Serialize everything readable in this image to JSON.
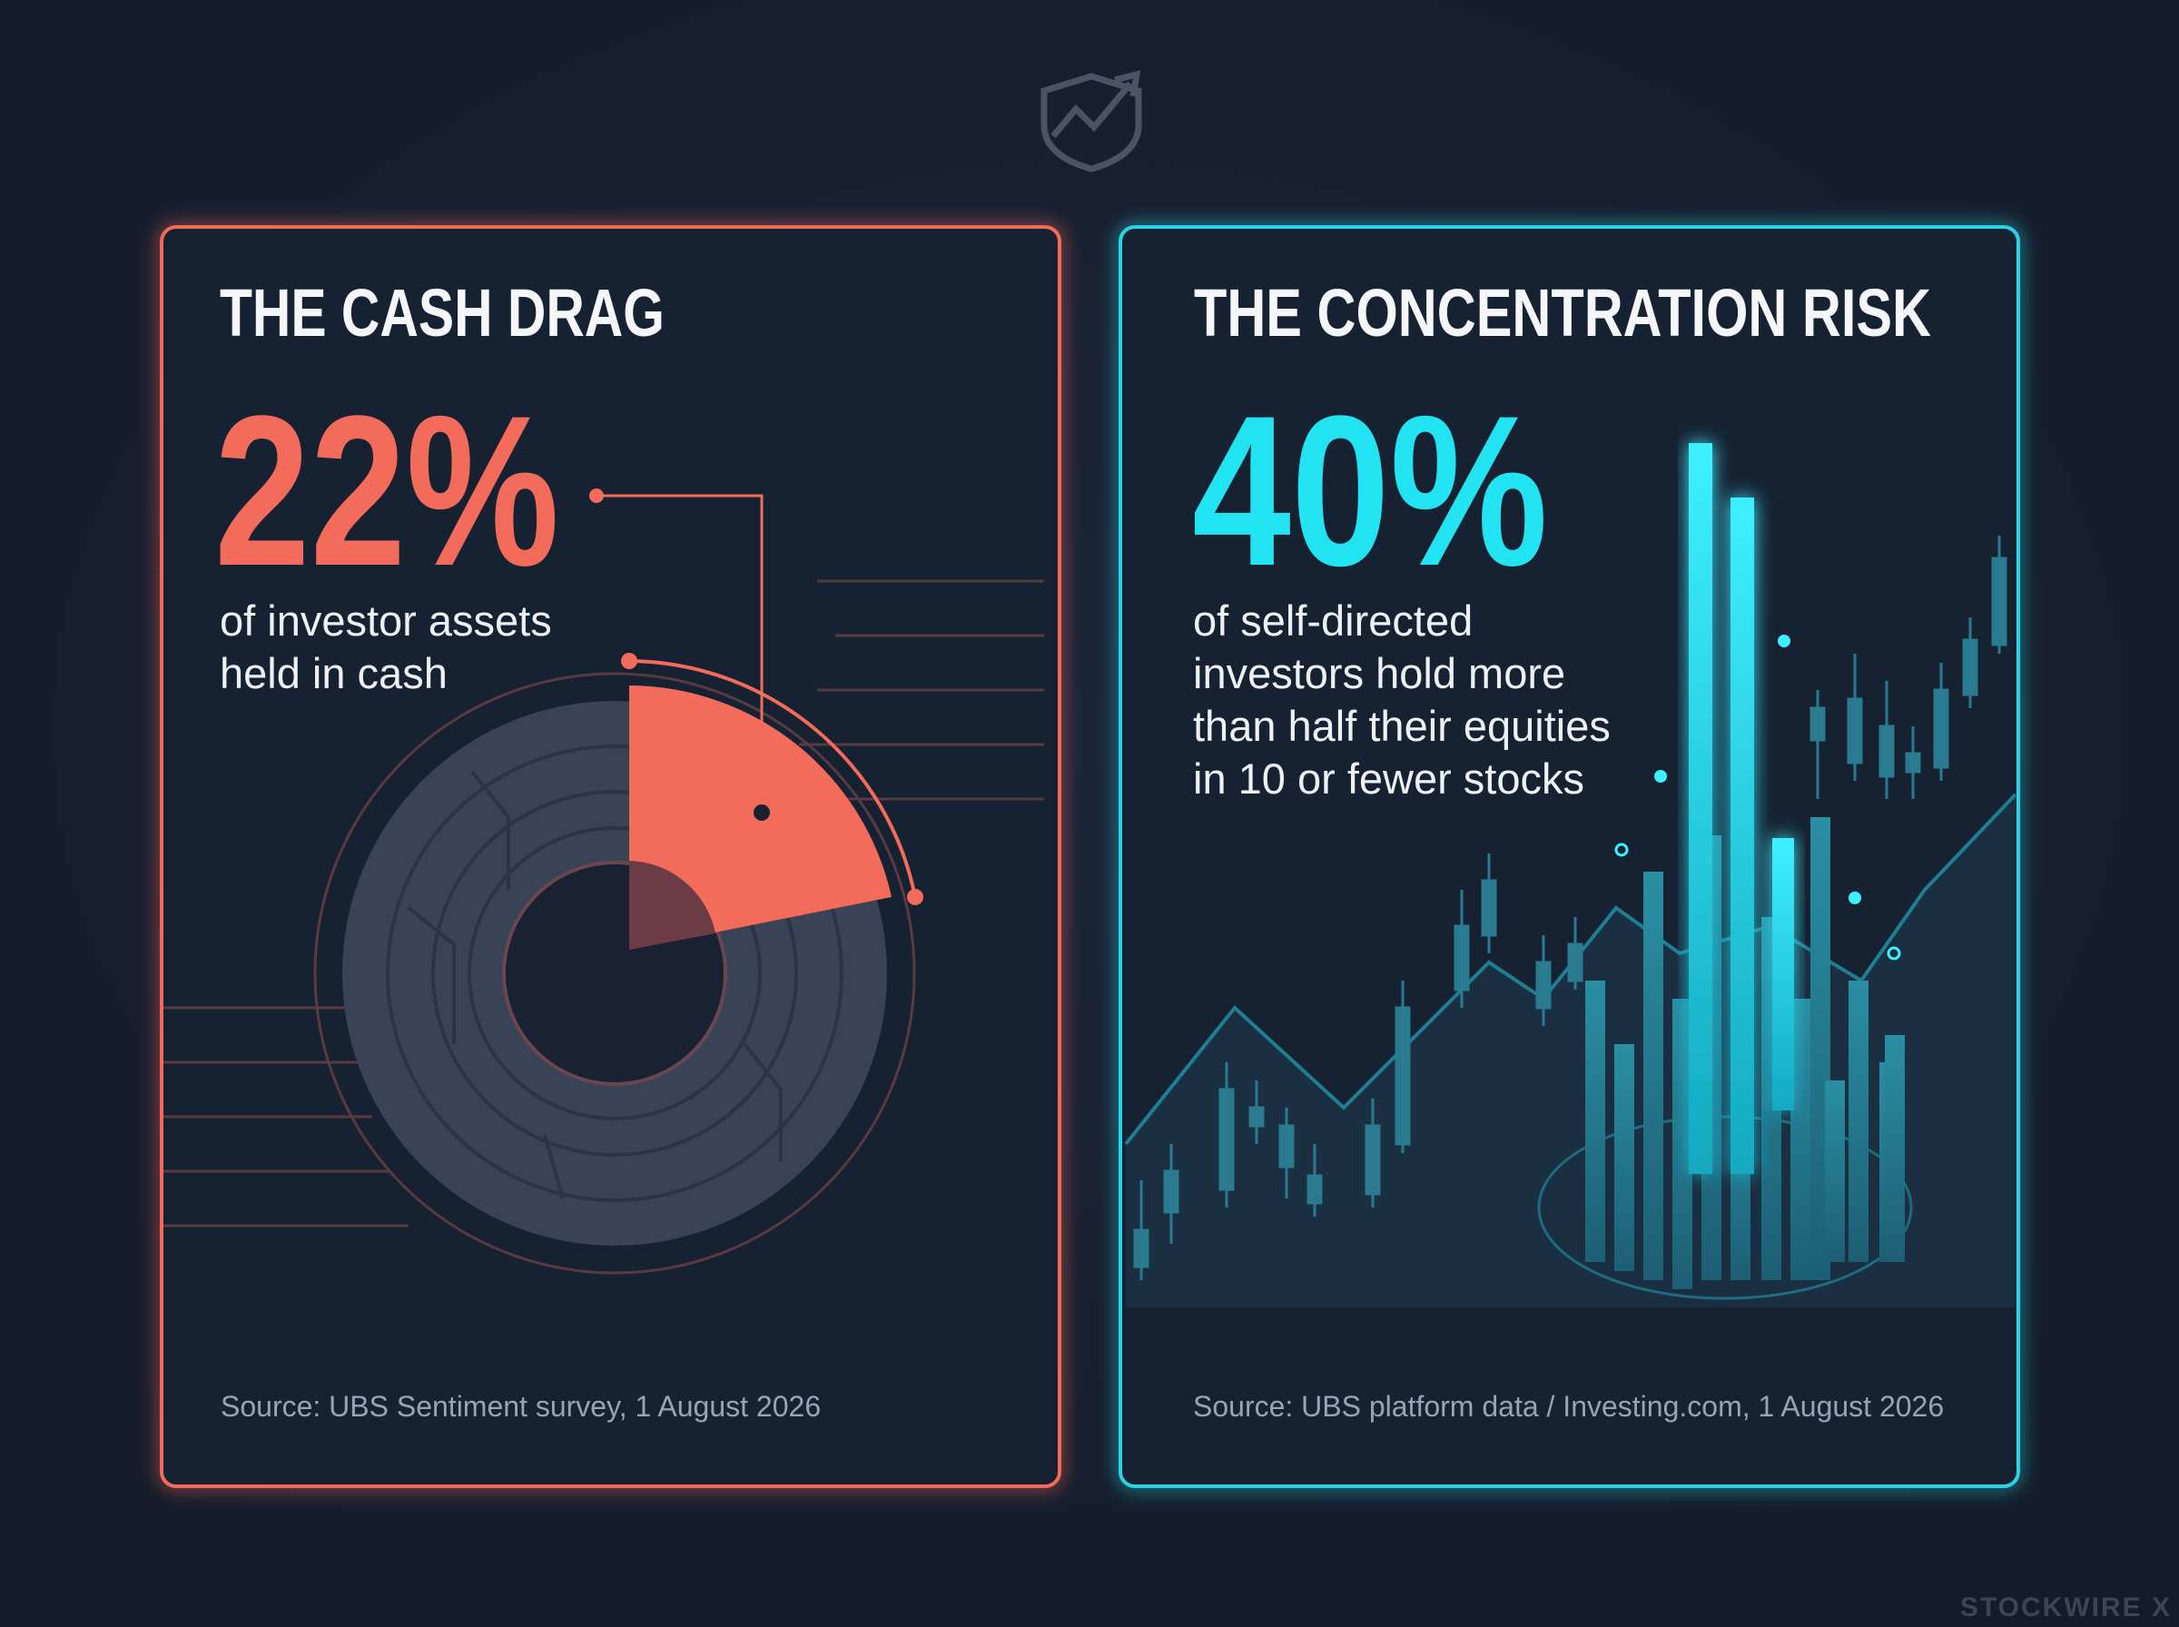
{
  "cards": [
    {
      "title": "THE CASH DRAG",
      "stat": "22%",
      "description": [
        "of investor assets",
        "held in cash"
      ],
      "source": "Source: UBS Sentiment survey, 1 August 2026"
    },
    {
      "title": "THE CONCENTRATION RISK",
      "stat": "40%",
      "description": [
        "of self-directed",
        "investors hold more",
        "than half their equities",
        "in 10 or fewer stocks"
      ],
      "source": "Source: UBS platform data / Investing.com, 1 August 2026"
    }
  ],
  "brand": "STOCKWIRE X"
}
